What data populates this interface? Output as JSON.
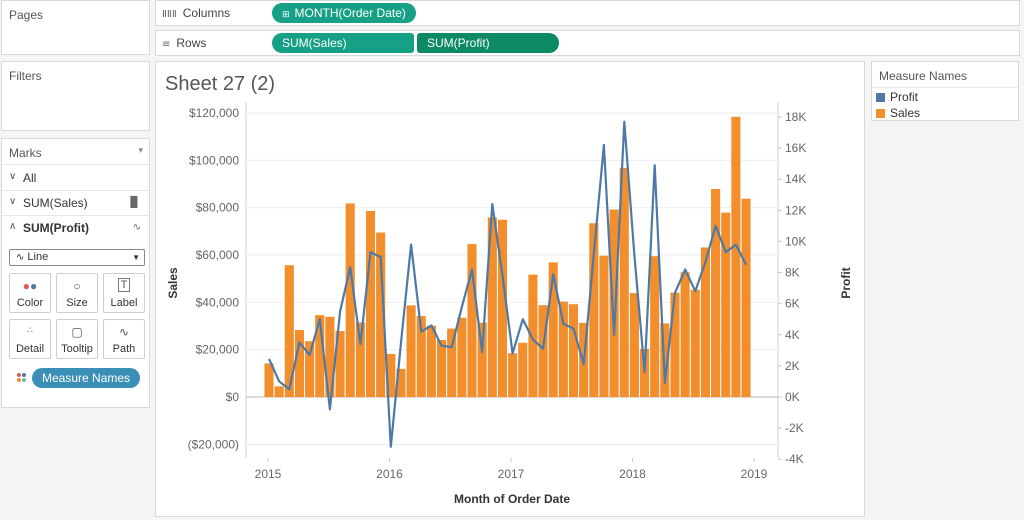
{
  "panels": {
    "pages": "Pages",
    "filters": "Filters",
    "marks": "Marks"
  },
  "shelves": {
    "columns_label": "Columns",
    "rows_label": "Rows",
    "columns_pill": "MONTH(Order Date)",
    "rows_pills": [
      "SUM(Sales)",
      "SUM(Profit)"
    ]
  },
  "marks": {
    "rows": [
      "All",
      "SUM(Sales)",
      "SUM(Profit)"
    ],
    "mark_type": "Line",
    "cards": [
      "Color",
      "Size",
      "Label",
      "Detail",
      "Tooltip",
      "Path"
    ],
    "color_field": "Measure Names"
  },
  "sheet": {
    "title": "Sheet 27 (2)"
  },
  "legend": {
    "title": "Measure Names",
    "items": [
      {
        "name": "Profit",
        "color": "#4e79a7"
      },
      {
        "name": "Sales",
        "color": "#f28e2b"
      }
    ]
  },
  "colors": {
    "pill_green": "#16a085",
    "pill_dark_green": "#0c8a64",
    "pill_blue": "#3a8fb7",
    "sales": "#f28e2b",
    "profit": "#4e79a7"
  },
  "chart_data": {
    "type": "bar",
    "x_axis": {
      "label": "Month of Order Date",
      "ticks": [
        "2015",
        "2016",
        "2017",
        "2018",
        "2019"
      ]
    },
    "y_left": {
      "label": "Sales",
      "range": [
        -20000,
        120000
      ],
      "ticks": [
        "$120,000",
        "$100,000",
        "$80,000",
        "$60,000",
        "$40,000",
        "$20,000",
        "$0",
        "($20,000)"
      ]
    },
    "y_right": {
      "label": "Profit",
      "range": [
        -4000,
        18000
      ],
      "ticks": [
        "18K",
        "16K",
        "14K",
        "12K",
        "10K",
        "8K",
        "6K",
        "4K",
        "2K",
        "0K",
        "-2K",
        "-4K"
      ]
    },
    "series": [
      {
        "name": "Sales",
        "mark": "bar",
        "values": [
          14200,
          4500,
          55700,
          28300,
          23600,
          34600,
          33900,
          27900,
          81800,
          31500,
          78600,
          69500,
          18200,
          11900,
          38700,
          34200,
          30100,
          24100,
          28900,
          33500,
          64600,
          31400,
          75900,
          74900,
          18500,
          22900,
          51700,
          38800,
          56900,
          40300,
          39200,
          31300,
          73400,
          59700,
          79200,
          96800,
          43900,
          20300,
          59500,
          31100,
          44100,
          52700,
          45300,
          63200,
          87900,
          77900,
          118400,
          83800
        ]
      },
      {
        "name": "Profit",
        "mark": "line",
        "values": [
          2450,
          1000,
          500,
          3500,
          2700,
          5000,
          -800,
          5500,
          8350,
          3400,
          9300,
          9000,
          -3200,
          3500,
          9800,
          4200,
          4600,
          3300,
          3200,
          5800,
          8200,
          2900,
          12400,
          7800,
          2800,
          5000,
          3700,
          3100,
          7900,
          4700,
          4400,
          2100,
          9200,
          16200,
          4000,
          17700,
          9100,
          1600,
          14900,
          900,
          6700,
          8200,
          6800,
          8700,
          11000,
          9300,
          9800,
          8500
        ]
      }
    ]
  }
}
